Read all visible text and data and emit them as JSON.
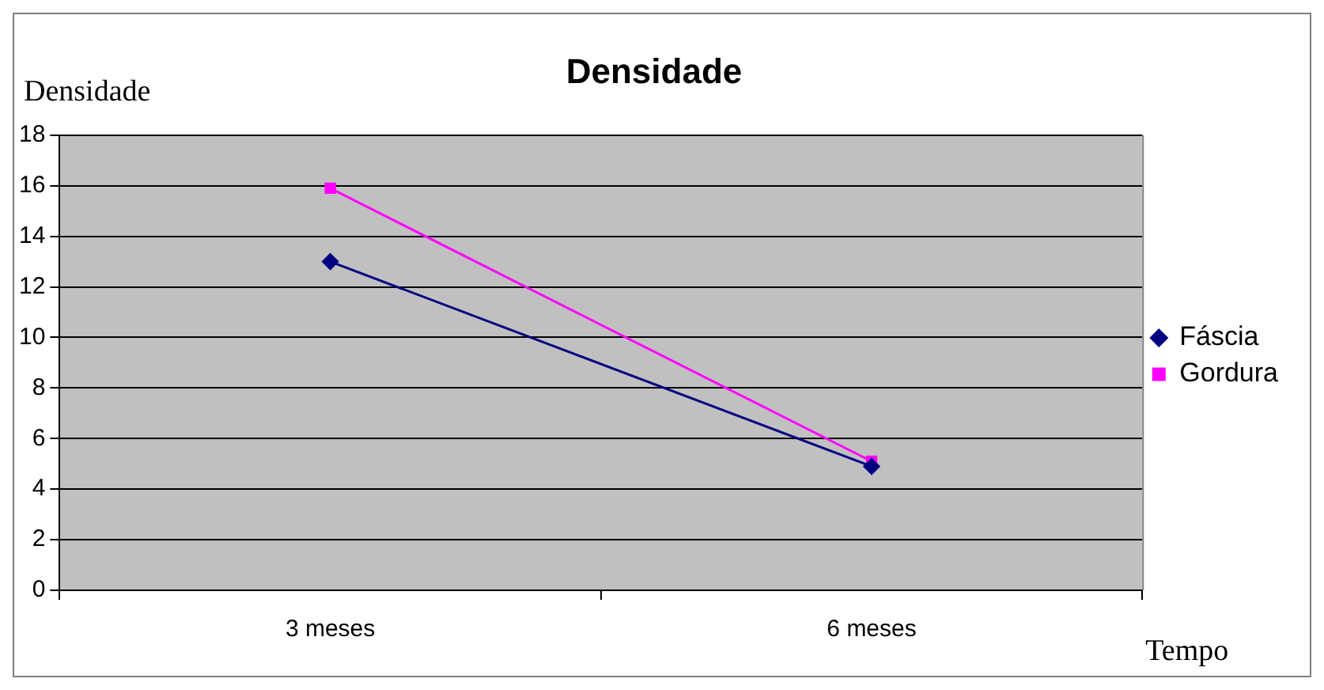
{
  "chart_data": {
    "type": "line",
    "title": "Densidade",
    "ylabel": "Densidade",
    "xlabel": "Tempo",
    "categories": [
      "3 meses",
      "6 meses"
    ],
    "series": [
      {
        "name": "Fáscia",
        "color": "#000080",
        "values": [
          13,
          4.9
        ],
        "marker": "diamond"
      },
      {
        "name": "Gordura",
        "color": "#ff00ff",
        "values": [
          15.9,
          5.1
        ],
        "marker": "square"
      }
    ],
    "ylim": [
      0,
      18
    ],
    "yticks": [
      0,
      2,
      4,
      6,
      8,
      10,
      12,
      14,
      16,
      18
    ],
    "grid": "y",
    "legend": "right"
  }
}
